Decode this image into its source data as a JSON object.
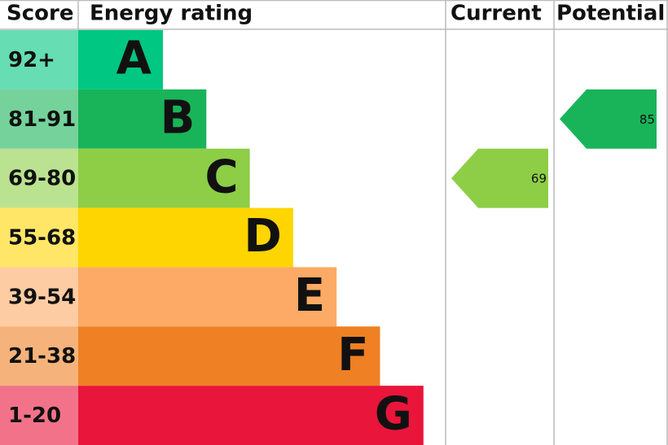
{
  "header": {
    "score": "Score",
    "rating": "Energy rating",
    "current": "Current",
    "potential": "Potential"
  },
  "bands": [
    {
      "score": "92+",
      "letter": "A",
      "color": "#00c781"
    },
    {
      "score": "81-91",
      "letter": "B",
      "color": "#19b459"
    },
    {
      "score": "69-80",
      "letter": "C",
      "color": "#8dce46"
    },
    {
      "score": "55-68",
      "letter": "D",
      "color": "#ffd500"
    },
    {
      "score": "39-54",
      "letter": "E",
      "color": "#fcaa65"
    },
    {
      "score": "21-38",
      "letter": "F",
      "color": "#ef8023"
    },
    {
      "score": "1-20",
      "letter": "G",
      "color": "#e9153b"
    }
  ],
  "current": 69,
  "potential": 85
}
